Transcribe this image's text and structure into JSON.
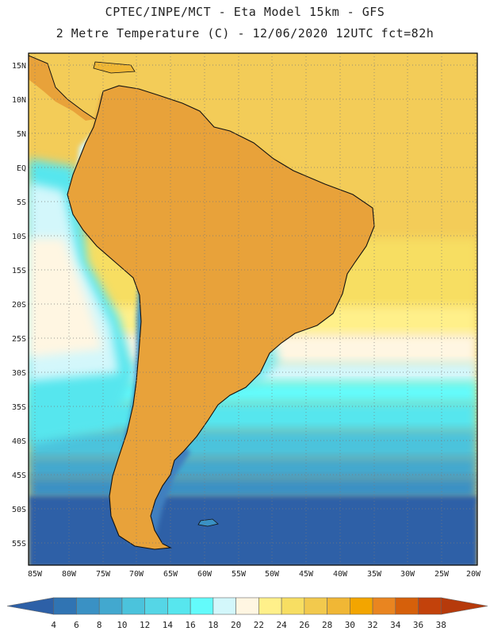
{
  "header": {
    "line1": "CPTEC/INPE/MCT -  Eta Model 15km - GFS",
    "line2": "2 Metre Temperature (C) - 12/06/2020 12UTC fct=82h"
  },
  "map": {
    "lat_labels": [
      "15N",
      "10N",
      "5N",
      "EQ",
      "5S",
      "10S",
      "15S",
      "20S",
      "25S",
      "30S",
      "35S",
      "40S",
      "45S",
      "50S",
      "55S"
    ],
    "lon_labels": [
      "85W",
      "80W",
      "75W",
      "70W",
      "65W",
      "60W",
      "55W",
      "50W",
      "45W",
      "40W",
      "35W",
      "30W",
      "25W",
      "20W"
    ],
    "lat_range": [
      18,
      -57
    ],
    "lon_range": [
      -86,
      -20
    ],
    "region": "South America",
    "field_colors": {
      "hot_amazon": "#c74b0e",
      "warm_plateau": "#e8a23a",
      "subtropical_ocean": "#f3cc58",
      "mid_ocean": "#5cd3ea",
      "south_ocean": "#2c6aa8",
      "andes": "#3b8fc5",
      "patagonia": "#3f7fbf"
    }
  },
  "colorbar": {
    "labels": [
      "4",
      "6",
      "8",
      "10",
      "12",
      "14",
      "16",
      "18",
      "20",
      "22",
      "24",
      "26",
      "28",
      "30",
      "32",
      "34",
      "36",
      "38"
    ],
    "colors": [
      "#2d60a7",
      "#3074b3",
      "#3a91c4",
      "#42a8cf",
      "#4bc3dc",
      "#55d6e6",
      "#57e6ee",
      "#63fbfb",
      "#d3f7fb",
      "#fff6e2",
      "#fff08a",
      "#f7de62",
      "#f2c94d",
      "#f0b735",
      "#f3a500",
      "#e98520",
      "#d6600a",
      "#c3420b",
      "#b63a0b"
    ]
  }
}
